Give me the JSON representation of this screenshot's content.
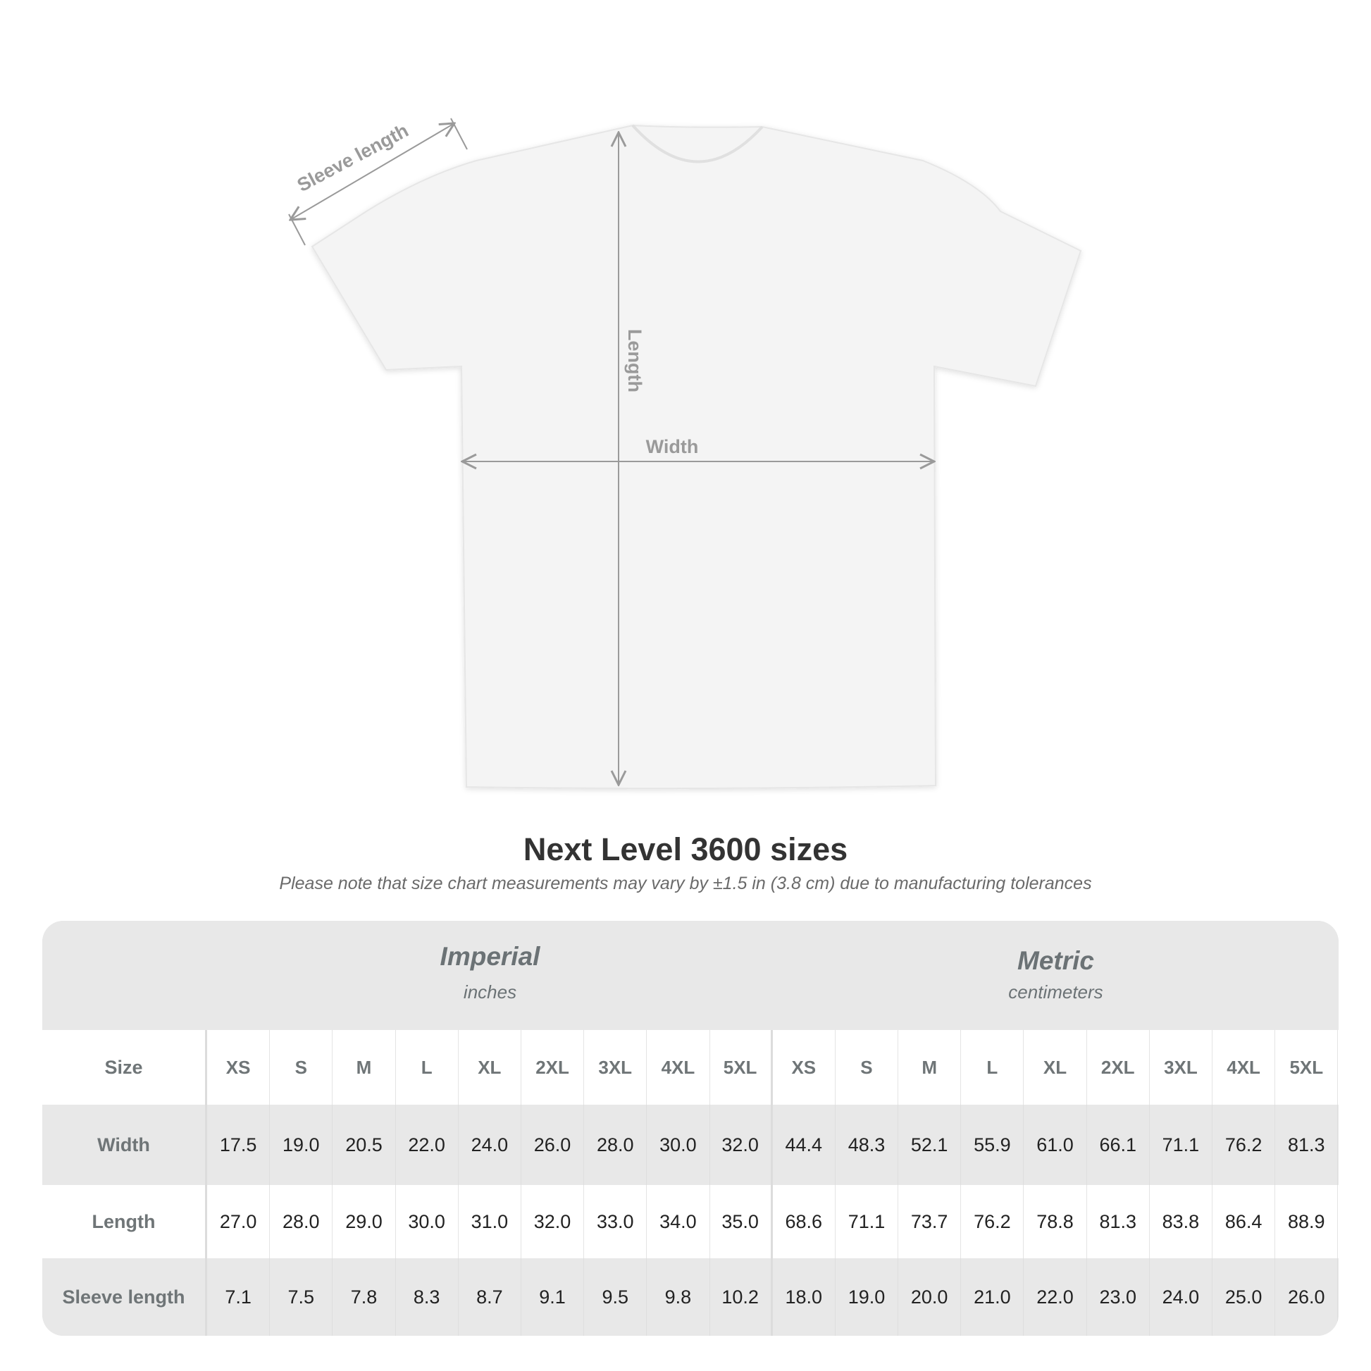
{
  "diagram": {
    "sleeve_label": "Sleeve length",
    "length_label": "Length",
    "width_label": "Width",
    "shirt_color": "#f4f4f4",
    "arrow_color": "#9a9a9a"
  },
  "title": "Next Level 3600 sizes",
  "note": "Please note that size chart measurements may vary by ±1.5 in (3.8 cm) due to manufacturing tolerances",
  "table": {
    "imperial": {
      "name": "Imperial",
      "unit": "inches"
    },
    "metric": {
      "name": "Metric",
      "unit": "centimeters"
    },
    "size_label": "Size",
    "sizes": [
      "XS",
      "S",
      "M",
      "L",
      "XL",
      "2XL",
      "3XL",
      "4XL",
      "5XL"
    ],
    "rows": [
      {
        "label": "Width",
        "imperial": [
          "17.5",
          "19.0",
          "20.5",
          "22.0",
          "24.0",
          "26.0",
          "28.0",
          "30.0",
          "32.0"
        ],
        "metric": [
          "44.4",
          "48.3",
          "52.1",
          "55.9",
          "61.0",
          "66.1",
          "71.1",
          "76.2",
          "81.3"
        ]
      },
      {
        "label": "Length",
        "imperial": [
          "27.0",
          "28.0",
          "29.0",
          "30.0",
          "31.0",
          "32.0",
          "33.0",
          "34.0",
          "35.0"
        ],
        "metric": [
          "68.6",
          "71.1",
          "73.7",
          "76.2",
          "78.8",
          "81.3",
          "83.8",
          "86.4",
          "88.9"
        ]
      },
      {
        "label": "Sleeve length",
        "imperial": [
          "7.1",
          "7.5",
          "7.8",
          "8.3",
          "8.7",
          "9.1",
          "9.5",
          "9.8",
          "10.2"
        ],
        "metric": [
          "18.0",
          "19.0",
          "20.0",
          "21.0",
          "22.0",
          "23.0",
          "24.0",
          "25.0",
          "26.0"
        ]
      }
    ]
  }
}
